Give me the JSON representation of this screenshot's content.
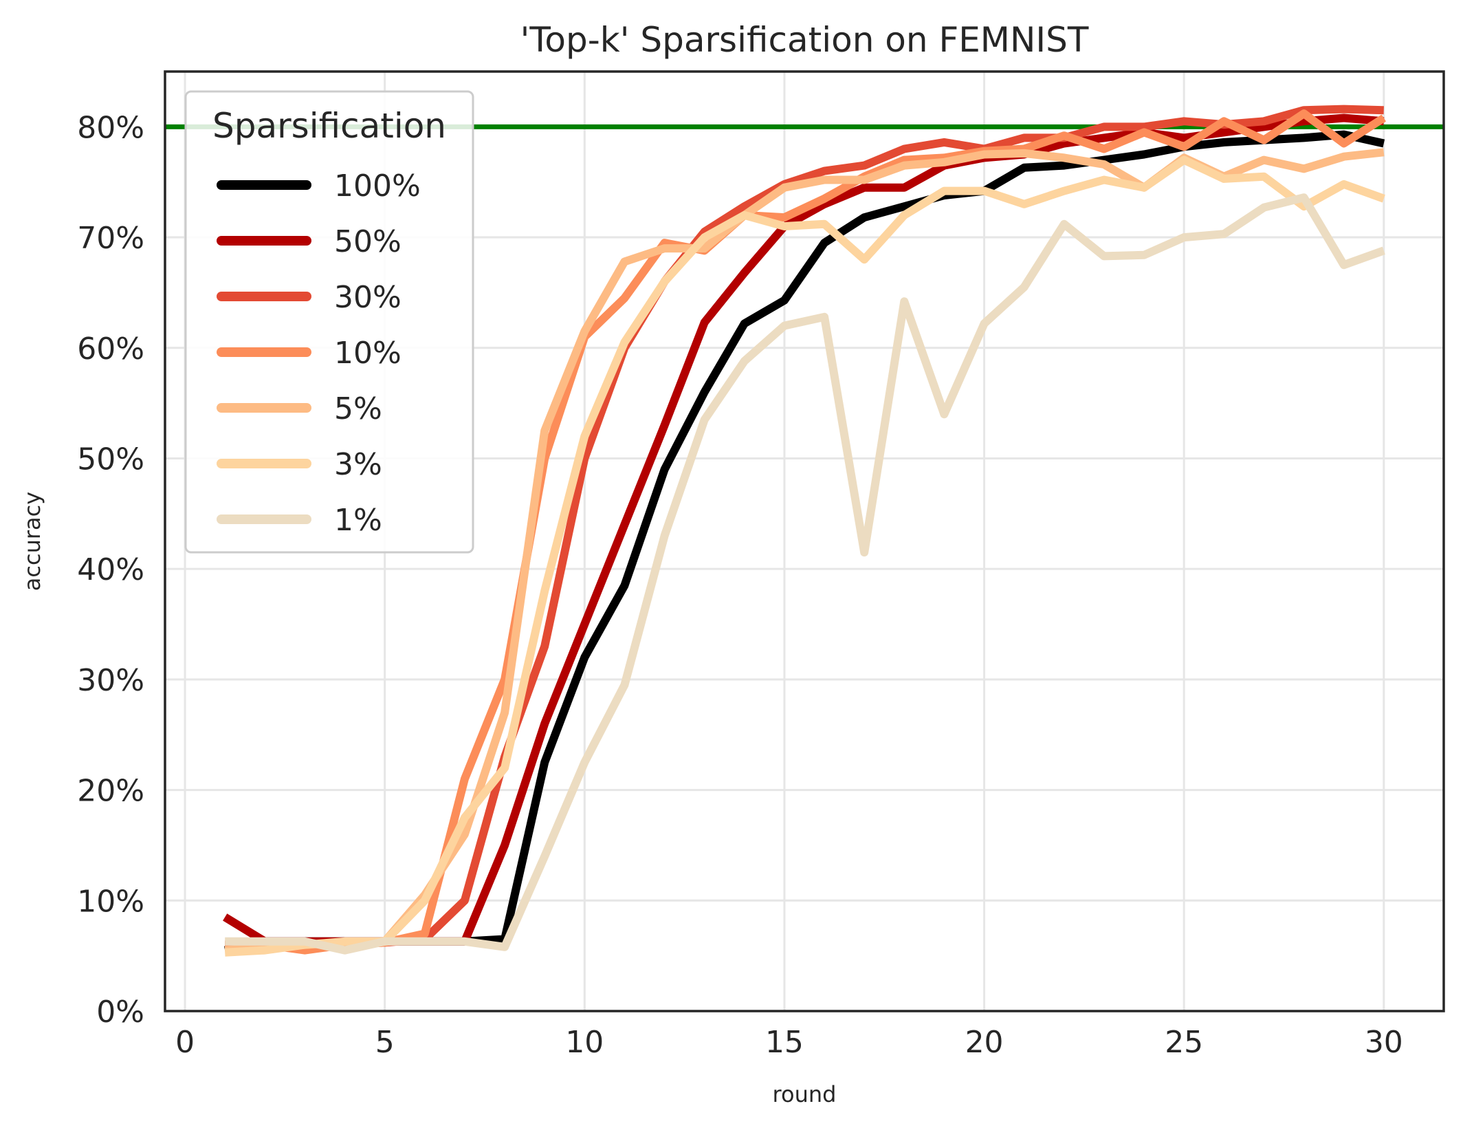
{
  "chart_data": {
    "type": "line",
    "title": "'Top-k' Sparsification on FEMNIST",
    "xlabel": "round",
    "ylabel": "accuracy",
    "xlim": [
      -0.5,
      31.5
    ],
    "ylim": [
      0,
      0.85
    ],
    "xticks": [
      0,
      5,
      10,
      15,
      20,
      25,
      30
    ],
    "xtick_labels": [
      "0",
      "5",
      "10",
      "15",
      "20",
      "25",
      "30"
    ],
    "yticks": [
      0,
      0.1,
      0.2,
      0.3,
      0.4,
      0.5,
      0.6,
      0.7,
      0.8
    ],
    "ytick_labels": [
      "0%",
      "10%",
      "20%",
      "30%",
      "40%",
      "50%",
      "60%",
      "70%",
      "80%"
    ],
    "grid": true,
    "reference_line": {
      "y": 0.8,
      "color": "#008000"
    },
    "legend": {
      "title": "Sparsification",
      "placement": "upper-left"
    },
    "x": [
      1,
      2,
      3,
      4,
      5,
      6,
      7,
      8,
      9,
      10,
      11,
      12,
      13,
      14,
      15,
      16,
      17,
      18,
      19,
      20,
      21,
      22,
      23,
      24,
      25,
      26,
      27,
      28,
      29,
      30
    ],
    "series": [
      {
        "name": "100%",
        "color": "#000000",
        "values": [
          0.055,
          0.063,
          0.063,
          0.063,
          0.063,
          0.063,
          0.063,
          0.065,
          0.225,
          0.32,
          0.385,
          0.49,
          0.56,
          0.622,
          0.643,
          0.695,
          0.718,
          0.728,
          0.738,
          0.742,
          0.763,
          0.765,
          0.77,
          0.775,
          0.782,
          0.786,
          0.788,
          0.79,
          0.793,
          0.785
        ]
      },
      {
        "name": "50%",
        "color": "#b30000",
        "values": [
          0.085,
          0.063,
          0.063,
          0.063,
          0.063,
          0.063,
          0.063,
          0.15,
          0.26,
          0.35,
          0.44,
          0.53,
          0.623,
          0.668,
          0.71,
          0.73,
          0.745,
          0.745,
          0.765,
          0.772,
          0.775,
          0.785,
          0.79,
          0.795,
          0.79,
          0.795,
          0.8,
          0.805,
          0.808,
          0.805
        ]
      },
      {
        "name": "30%",
        "color": "#e34a33",
        "values": [
          0.06,
          0.06,
          0.06,
          0.06,
          0.062,
          0.065,
          0.1,
          0.23,
          0.33,
          0.5,
          0.6,
          0.66,
          0.705,
          0.728,
          0.748,
          0.76,
          0.765,
          0.78,
          0.786,
          0.78,
          0.79,
          0.79,
          0.8,
          0.8,
          0.805,
          0.802,
          0.805,
          0.815,
          0.816,
          0.815
        ]
      },
      {
        "name": "10%",
        "color": "#fc8d59",
        "values": [
          0.06,
          0.06,
          0.055,
          0.06,
          0.062,
          0.07,
          0.21,
          0.3,
          0.5,
          0.61,
          0.645,
          0.695,
          0.688,
          0.72,
          0.718,
          0.735,
          0.755,
          0.77,
          0.772,
          0.778,
          0.78,
          0.792,
          0.78,
          0.795,
          0.782,
          0.805,
          0.788,
          0.812,
          0.785,
          0.808
        ]
      },
      {
        "name": "5%",
        "color": "#fdbb84",
        "values": [
          0.055,
          0.058,
          0.06,
          0.062,
          0.063,
          0.105,
          0.16,
          0.27,
          0.525,
          0.615,
          0.678,
          0.69,
          0.69,
          0.72,
          0.745,
          0.752,
          0.752,
          0.765,
          0.768,
          0.775,
          0.776,
          0.772,
          0.766,
          0.745,
          0.772,
          0.755,
          0.77,
          0.762,
          0.773,
          0.777
        ]
      },
      {
        "name": "3%",
        "color": "#fdd49e",
        "values": [
          0.053,
          0.055,
          0.06,
          0.063,
          0.063,
          0.1,
          0.175,
          0.22,
          0.38,
          0.52,
          0.605,
          0.66,
          0.7,
          0.72,
          0.71,
          0.712,
          0.68,
          0.72,
          0.742,
          0.742,
          0.73,
          0.742,
          0.752,
          0.745,
          0.77,
          0.753,
          0.755,
          0.728,
          0.748,
          0.735
        ]
      },
      {
        "name": "1%",
        "color": "#ecdcc1",
        "values": [
          0.063,
          0.063,
          0.063,
          0.055,
          0.063,
          0.063,
          0.063,
          0.058,
          0.14,
          0.225,
          0.295,
          0.43,
          0.535,
          0.588,
          0.62,
          0.628,
          0.415,
          0.642,
          0.54,
          0.622,
          0.655,
          0.712,
          0.683,
          0.684,
          0.7,
          0.703,
          0.727,
          0.736,
          0.675,
          0.688
        ]
      }
    ]
  }
}
